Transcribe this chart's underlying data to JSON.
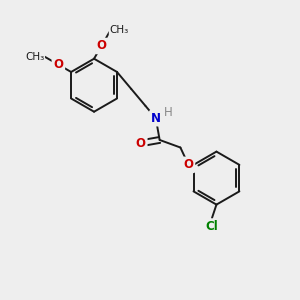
{
  "background_color": "#eeeeee",
  "bond_color": "#1a1a1a",
  "bond_width": 1.4,
  "atom_colors": {
    "O": "#cc0000",
    "N": "#0000cc",
    "Cl": "#008000",
    "H": "#888888",
    "C": "#1a1a1a"
  },
  "font_size": 8.5,
  "fig_width": 3.0,
  "fig_height": 3.0,
  "dpi": 100
}
